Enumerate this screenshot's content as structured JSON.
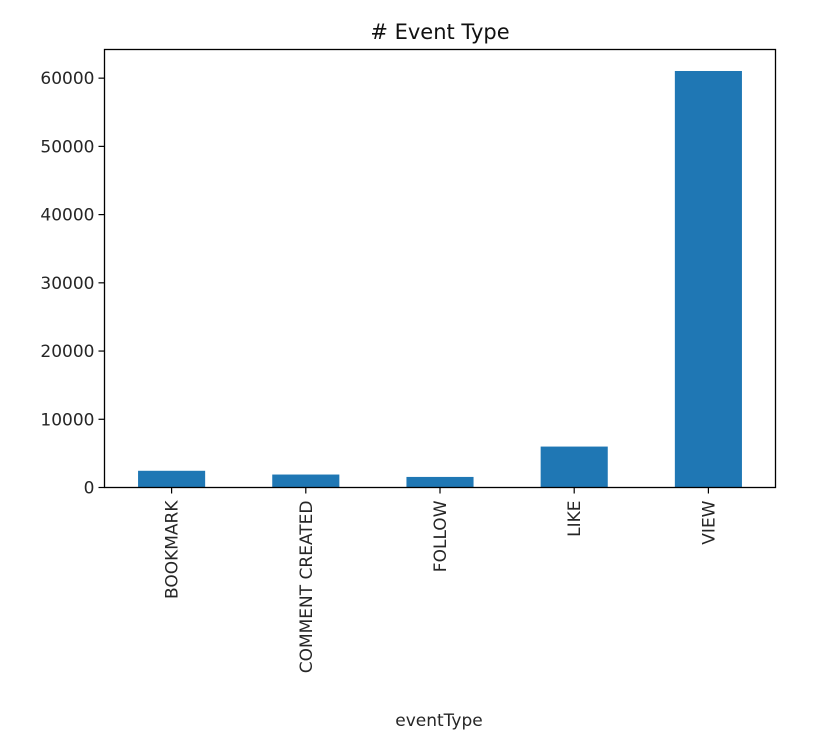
{
  "chart_data": {
    "type": "bar",
    "title": "# Event Type",
    "xlabel": "eventType",
    "ylabel": "",
    "categories": [
      "BOOKMARK",
      "COMMENT CREATED",
      "FOLLOW",
      "LIKE",
      "VIEW"
    ],
    "values": [
      2450,
      1900,
      1550,
      6000,
      61050
    ],
    "ylim": [
      0,
      64200
    ],
    "yticks": [
      0,
      10000,
      20000,
      30000,
      40000,
      50000,
      60000
    ],
    "grid": false,
    "legend": "none",
    "bar_color": "#1f77b4"
  }
}
